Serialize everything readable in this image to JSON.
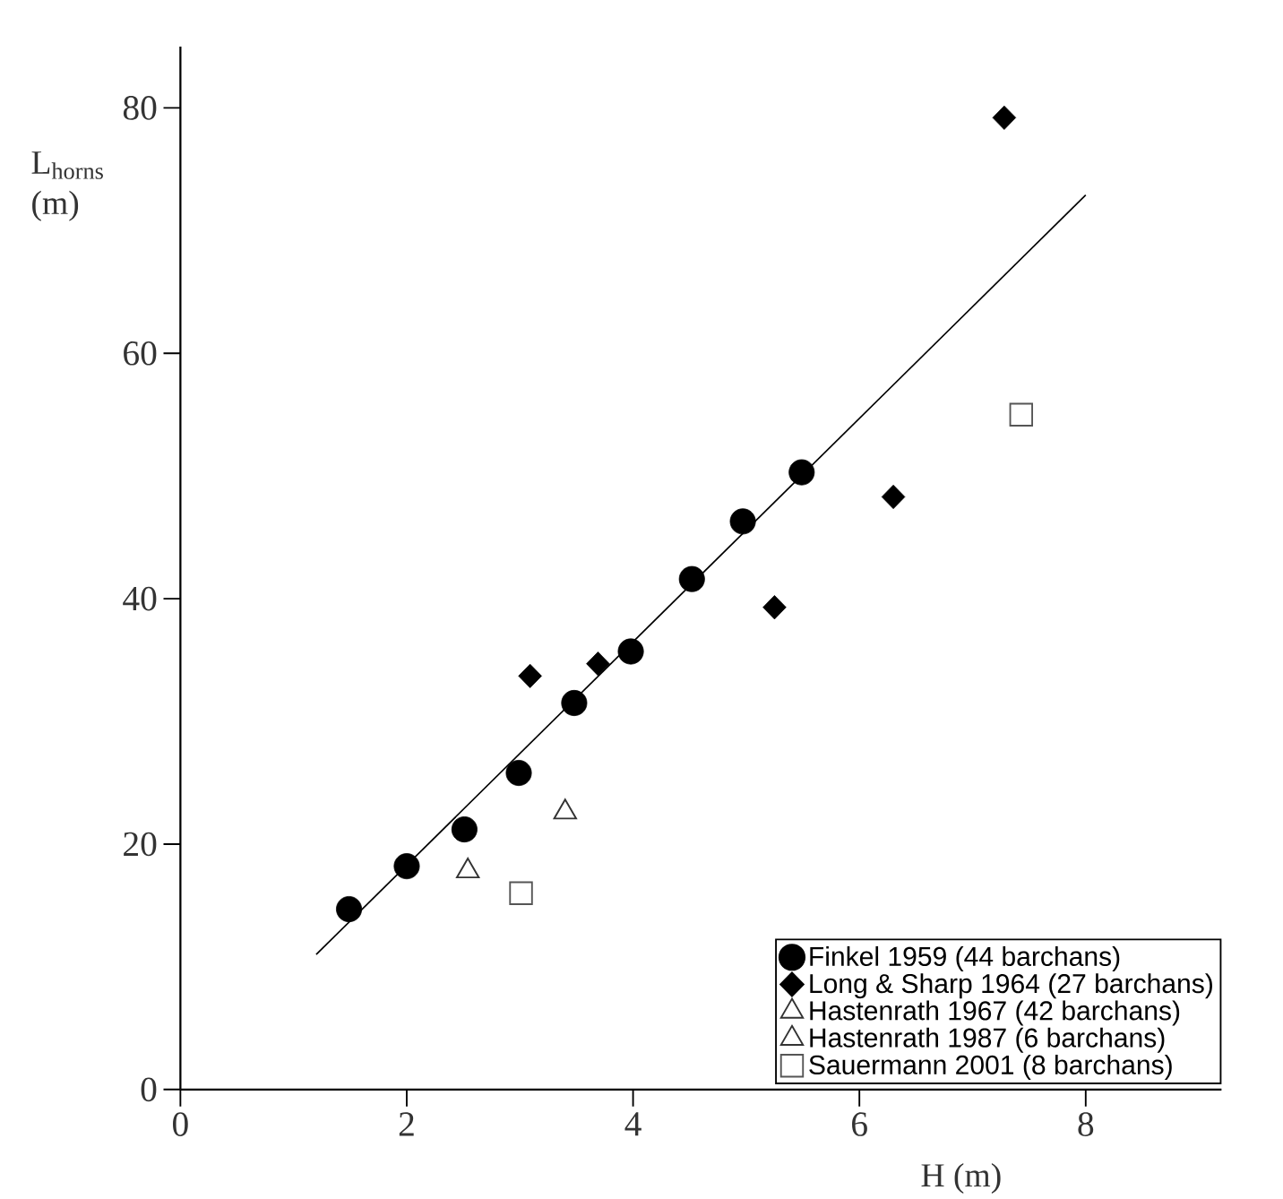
{
  "chart_data": {
    "type": "scatter",
    "xlabel": "H (m)",
    "ylabel": "L$_{horns}$ (m)",
    "xlim": [
      0,
      9.2
    ],
    "ylim": [
      0,
      85
    ],
    "xticks": [
      0,
      2,
      4,
      6,
      8
    ],
    "yticks": [
      0,
      20,
      40,
      60,
      80
    ],
    "legend": "bottom right",
    "series": [
      {
        "name": "Finkel 1959 (44 barchans)",
        "color": "#000000",
        "marker": "circle",
        "x": [
          1.49,
          2.0,
          2.51,
          2.99,
          3.48,
          3.98,
          4.52,
          4.97,
          5.49
        ],
        "values": [
          14.7,
          18.2,
          21.2,
          25.8,
          31.5,
          35.7,
          41.6,
          46.3,
          50.3
        ]
      },
      {
        "name": "Long & Sharp 1964 (27 barchans)",
        "color": "#000000",
        "marker": "diamond",
        "x": [
          3.09,
          3.69,
          5.25,
          6.3,
          7.28
        ],
        "values": [
          33.7,
          34.7,
          39.3,
          48.3,
          79.2
        ]
      },
      {
        "name": "Hastenrath 1967 (42 barchans)",
        "color": "#333333",
        "marker": "triangle"
      },
      {
        "name": "Hastenrath 1987 (6 barchans)",
        "color": "#333333",
        "marker": "triangle",
        "x": [
          2.54,
          3.4
        ],
        "values": [
          17.8,
          22.6
        ]
      },
      {
        "name": "Sauermann 2001 (8 barchans)",
        "color": "#555555",
        "marker": "square",
        "x": [
          3.01,
          7.43
        ],
        "values": [
          16.0,
          55.0
        ]
      },
      {
        "type": "line",
        "color": "#000000",
        "marker": "none",
        "x": [
          1.2,
          8.0
        ],
        "values": [
          11.0,
          72.9
        ]
      }
    ]
  }
}
